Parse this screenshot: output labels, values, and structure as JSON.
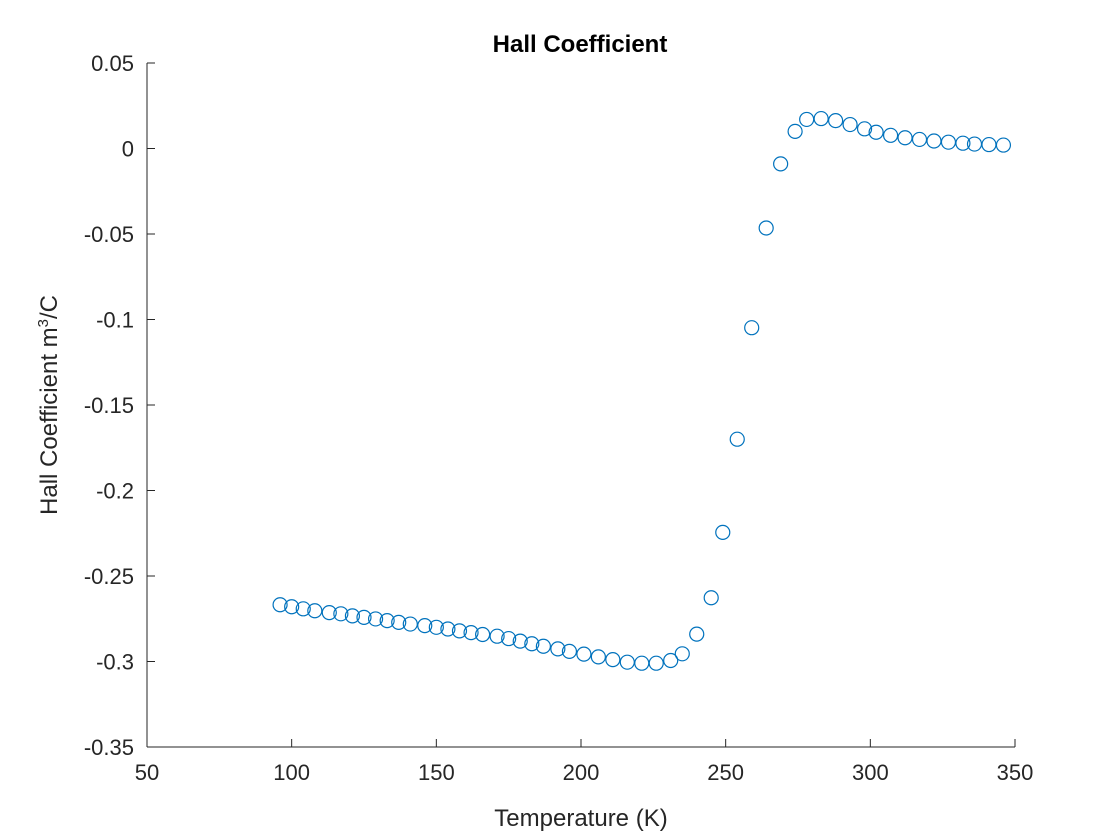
{
  "chart_data": {
    "type": "scatter",
    "title": "Hall Coefficient",
    "xlabel": "Temperature (K)",
    "ylabel": {
      "prefix": "Hall Coefficient m",
      "superscript": "3",
      "suffix": "/C"
    },
    "xlim": [
      50,
      350
    ],
    "ylim": [
      -0.35,
      0.05
    ],
    "xticks": [
      50,
      100,
      150,
      200,
      250,
      300,
      350
    ],
    "xtick_labels": [
      "50",
      "100",
      "150",
      "200",
      "250",
      "300",
      "350"
    ],
    "yticks": [
      0.05,
      0,
      -0.05,
      -0.1,
      -0.15,
      -0.2,
      -0.25,
      -0.3,
      -0.35
    ],
    "ytick_labels": [
      "0.05",
      "0",
      "-0.05",
      "-0.1",
      "-0.15",
      "-0.2",
      "-0.25",
      "-0.3",
      "-0.35"
    ],
    "grid": false,
    "marker": "circle",
    "color": "#0072BD",
    "series": [
      {
        "name": "Hall Coefficient",
        "x": [
          96,
          100,
          104,
          108,
          113,
          117,
          121,
          125,
          129,
          133,
          137,
          141,
          146,
          150,
          154,
          158,
          162,
          166,
          171,
          175,
          179,
          183,
          187,
          192,
          196,
          201,
          206,
          211,
          216,
          221,
          226,
          231,
          235,
          240,
          245,
          249,
          254,
          259,
          264,
          269,
          274,
          278,
          283,
          288,
          293,
          298,
          302,
          307,
          312,
          317,
          322,
          327,
          332,
          336,
          341,
          346
        ],
        "y": [
          -0.2668,
          -0.268,
          -0.2692,
          -0.2703,
          -0.2714,
          -0.2721,
          -0.2733,
          -0.2742,
          -0.2751,
          -0.2761,
          -0.2771,
          -0.2781,
          -0.279,
          -0.28,
          -0.281,
          -0.2821,
          -0.2831,
          -0.2842,
          -0.2852,
          -0.2866,
          -0.2881,
          -0.2896,
          -0.2911,
          -0.2926,
          -0.2941,
          -0.2957,
          -0.2973,
          -0.2989,
          -0.3004,
          -0.301,
          -0.301,
          -0.2994,
          -0.2955,
          -0.284,
          -0.2627,
          -0.2245,
          -0.17,
          -0.1048,
          -0.0465,
          -0.009,
          0.01,
          0.017,
          0.0175,
          0.0163,
          0.014,
          0.0115,
          0.0095,
          0.0077,
          0.0063,
          0.0053,
          0.0044,
          0.0037,
          0.0031,
          0.0026,
          0.0023,
          0.002
        ]
      }
    ]
  }
}
